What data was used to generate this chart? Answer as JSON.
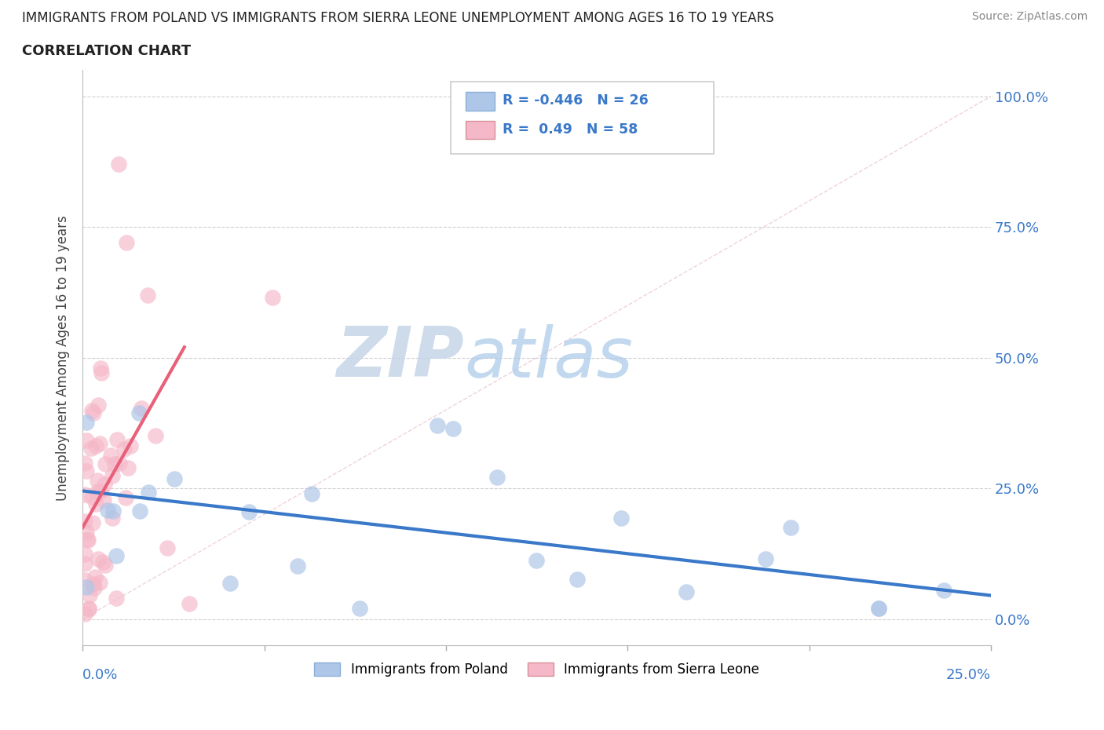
{
  "title_line1": "IMMIGRANTS FROM POLAND VS IMMIGRANTS FROM SIERRA LEONE UNEMPLOYMENT AMONG AGES 16 TO 19 YEARS",
  "title_line2": "CORRELATION CHART",
  "source_text": "Source: ZipAtlas.com",
  "ylabel": "Unemployment Among Ages 16 to 19 years",
  "ytick_labels": [
    "0.0%",
    "25.0%",
    "50.0%",
    "75.0%",
    "100.0%"
  ],
  "ytick_values": [
    0.0,
    0.25,
    0.5,
    0.75,
    1.0
  ],
  "xlim": [
    0.0,
    0.25
  ],
  "ylim": [
    -0.05,
    1.05
  ],
  "legend_poland": "Immigrants from Poland",
  "legend_sierra": "Immigrants from Sierra Leone",
  "R_poland": -0.446,
  "N_poland": 26,
  "R_sierra": 0.49,
  "N_sierra": 58,
  "color_poland": "#aec6e8",
  "color_poland_line": "#3a78c9",
  "color_sierra": "#f5b8c8",
  "color_sierra_line": "#e8607a",
  "watermark_color": "#d0dff0",
  "poland_trend_x": [
    0.0,
    0.25
  ],
  "poland_trend_y": [
    0.245,
    0.045
  ],
  "sierra_trend_x": [
    0.0,
    0.028
  ],
  "sierra_trend_y": [
    0.175,
    0.52
  ],
  "diag_line_x": [
    0.0,
    0.25
  ],
  "diag_line_y": [
    0.0,
    1.0
  ]
}
